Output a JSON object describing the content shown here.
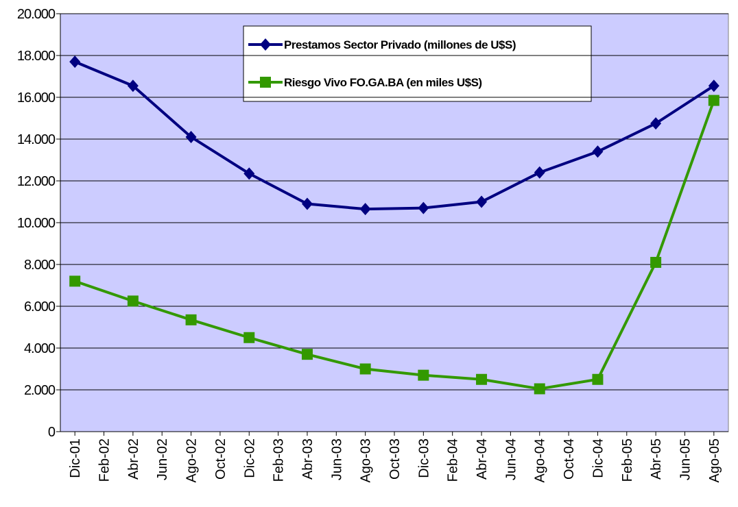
{
  "chart_data": {
    "type": "line",
    "x": [
      0,
      2,
      4,
      6,
      8,
      10,
      12,
      14,
      16,
      18,
      20,
      22
    ],
    "xlim": [
      -0.5,
      22.5
    ],
    "xticks": [
      {
        "value": 0,
        "label": "Dic-01"
      },
      {
        "value": 1,
        "label": "Feb-02"
      },
      {
        "value": 2,
        "label": "Abr-02"
      },
      {
        "value": 3,
        "label": "Jun-02"
      },
      {
        "value": 4,
        "label": "Ago-02"
      },
      {
        "value": 5,
        "label": "Oct-02"
      },
      {
        "value": 6,
        "label": "Dic-02"
      },
      {
        "value": 7,
        "label": "Feb-03"
      },
      {
        "value": 8,
        "label": "Abr-03"
      },
      {
        "value": 9,
        "label": "Jun-03"
      },
      {
        "value": 10,
        "label": "Ago-03"
      },
      {
        "value": 11,
        "label": "Oct-03"
      },
      {
        "value": 12,
        "label": "Dic-03"
      },
      {
        "value": 13,
        "label": "Feb-04"
      },
      {
        "value": 14,
        "label": "Abr-04"
      },
      {
        "value": 15,
        "label": "Jun-04"
      },
      {
        "value": 16,
        "label": "Ago-04"
      },
      {
        "value": 17,
        "label": "Oct-04"
      },
      {
        "value": 18,
        "label": "Dic-04"
      },
      {
        "value": 19,
        "label": "Feb-05"
      },
      {
        "value": 20,
        "label": "Abr-05"
      },
      {
        "value": 21,
        "label": "Jun-05"
      },
      {
        "value": 22,
        "label": "Ago-05"
      }
    ],
    "ylim": [
      0,
      20000
    ],
    "yticks": [
      0,
      {
        "value": 2000,
        "label": "2.000"
      },
      {
        "value": 4000,
        "label": "4.000"
      },
      {
        "value": 6000,
        "label": "6.000"
      },
      {
        "value": 8000,
        "label": "8.000"
      },
      {
        "value": 10000,
        "label": "10.000"
      },
      {
        "value": 12000,
        "label": "12.000"
      },
      {
        "value": 14000,
        "label": "14.000"
      },
      {
        "value": 16000,
        "label": "16.000"
      },
      {
        "value": 18000,
        "label": "18.000"
      },
      {
        "value": 20000,
        "label": "20.000"
      }
    ],
    "grid": true,
    "series": [
      {
        "name": "Prestamos Sector Privado (millones de U$S)",
        "color": "#000080",
        "marker": "diamond",
        "values": [
          17700,
          16550,
          14100,
          12350,
          10900,
          10650,
          10700,
          11000,
          12400,
          13400,
          14750,
          16550
        ]
      },
      {
        "name": "Riesgo Vivo FO.GA.BA  (en miles U$S)",
        "color": "#339900",
        "marker": "square",
        "values": [
          7200,
          6250,
          5350,
          4500,
          3700,
          3000,
          2700,
          2500,
          2050,
          2500,
          8100,
          15850
        ]
      }
    ]
  }
}
